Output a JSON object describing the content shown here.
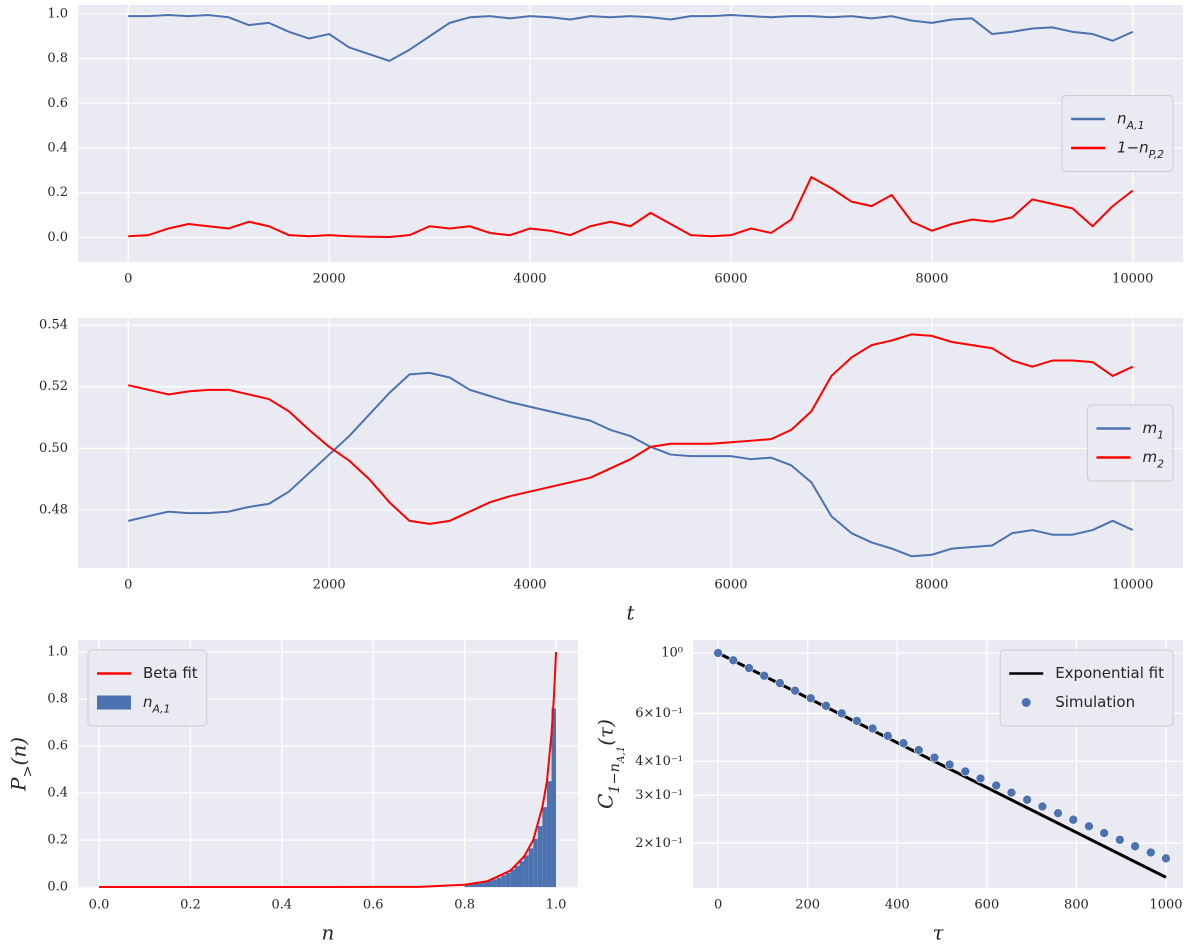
{
  "chart_data": [
    {
      "type": "line",
      "x": [
        0,
        200,
        400,
        600,
        800,
        1000,
        1200,
        1400,
        1600,
        1800,
        2000,
        2200,
        2400,
        2600,
        2800,
        3000,
        3200,
        3400,
        3600,
        3800,
        4000,
        4200,
        4400,
        4600,
        4800,
        5000,
        5200,
        5400,
        5600,
        5800,
        6000,
        6200,
        6400,
        6600,
        6800,
        7000,
        7200,
        7400,
        7600,
        7800,
        8000,
        8200,
        8400,
        8600,
        8800,
        9000,
        9200,
        9400,
        9600,
        9800,
        10000
      ],
      "series": [
        {
          "name": "n_{A,1}",
          "color": "#4c72b0",
          "values": [
            0.99,
            0.99,
            0.995,
            0.99,
            0.995,
            0.985,
            0.95,
            0.96,
            0.92,
            0.89,
            0.91,
            0.85,
            0.82,
            0.79,
            0.84,
            0.9,
            0.96,
            0.985,
            0.99,
            0.98,
            0.99,
            0.985,
            0.975,
            0.99,
            0.985,
            0.99,
            0.985,
            0.975,
            0.99,
            0.99,
            0.995,
            0.99,
            0.985,
            0.99,
            0.99,
            0.985,
            0.99,
            0.98,
            0.99,
            0.97,
            0.96,
            0.975,
            0.98,
            0.91,
            0.92,
            0.935,
            0.94,
            0.92,
            0.91,
            0.88,
            0.92
          ]
        },
        {
          "name": "1−n_{P,2}",
          "color": "#ff0000",
          "values": [
            0.005,
            0.01,
            0.04,
            0.06,
            0.05,
            0.04,
            0.07,
            0.05,
            0.01,
            0.005,
            0.01,
            0.005,
            0.003,
            0.002,
            0.01,
            0.05,
            0.04,
            0.05,
            0.02,
            0.01,
            0.04,
            0.03,
            0.01,
            0.05,
            0.07,
            0.05,
            0.11,
            0.06,
            0.01,
            0.005,
            0.01,
            0.04,
            0.02,
            0.08,
            0.27,
            0.22,
            0.16,
            0.14,
            0.19,
            0.07,
            0.03,
            0.06,
            0.08,
            0.07,
            0.09,
            0.17,
            0.15,
            0.13,
            0.05,
            0.14,
            0.21
          ]
        }
      ],
      "xlim": [
        -500,
        10500
      ],
      "xticks": [
        0,
        2000,
        4000,
        6000,
        8000,
        10000
      ],
      "ylim": [
        -0.11,
        1.04
      ],
      "yticks": [
        {
          "value": 0,
          "label": "0.0"
        },
        0.2,
        0.4,
        0.6,
        0.8,
        {
          "value": 1,
          "label": "1.0"
        }
      ],
      "grid": true,
      "legend": "center right"
    },
    {
      "type": "line",
      "x": [
        0,
        200,
        400,
        600,
        800,
        1000,
        1200,
        1400,
        1600,
        1800,
        2000,
        2200,
        2400,
        2600,
        2800,
        3000,
        3200,
        3400,
        3600,
        3800,
        4000,
        4200,
        4400,
        4600,
        4800,
        5000,
        5200,
        5400,
        5600,
        5800,
        6000,
        6200,
        6400,
        6600,
        6800,
        7000,
        7200,
        7400,
        7600,
        7800,
        8000,
        8200,
        8400,
        8600,
        8800,
        9000,
        9200,
        9400,
        9600,
        9800,
        10000
      ],
      "series": [
        {
          "name": "m_{1}",
          "color": "#4c72b0",
          "values": [
            0.4765,
            0.478,
            0.4795,
            0.479,
            0.479,
            0.4795,
            0.481,
            0.482,
            0.486,
            0.492,
            0.498,
            0.504,
            0.511,
            0.518,
            0.524,
            0.5245,
            0.523,
            0.519,
            0.517,
            0.515,
            0.5135,
            0.512,
            0.5105,
            0.509,
            0.506,
            0.504,
            0.5005,
            0.498,
            0.4975,
            0.4975,
            0.4975,
            0.4965,
            0.497,
            0.4945,
            0.489,
            0.478,
            0.4725,
            0.4695,
            0.4675,
            0.465,
            0.4655,
            0.4675,
            0.468,
            0.4685,
            0.4725,
            0.4735,
            0.472,
            0.472,
            0.4735,
            0.4765,
            0.4735
          ]
        },
        {
          "name": "m_{2}",
          "color": "#ff0000",
          "values": [
            0.5205,
            0.519,
            0.5175,
            0.5185,
            0.519,
            0.519,
            0.5175,
            0.516,
            0.512,
            0.506,
            0.5005,
            0.496,
            0.49,
            0.4825,
            0.4765,
            0.4755,
            0.4765,
            0.4795,
            0.4825,
            0.4845,
            0.486,
            0.4875,
            0.489,
            0.4905,
            0.4935,
            0.4965,
            0.5005,
            0.5015,
            0.5015,
            0.5015,
            0.502,
            0.5025,
            0.503,
            0.506,
            0.512,
            0.5235,
            0.5295,
            0.5335,
            0.535,
            0.537,
            0.5365,
            0.5345,
            0.5335,
            0.5325,
            0.5285,
            0.5265,
            0.5285,
            0.5285,
            0.528,
            0.5235,
            0.5265
          ]
        }
      ],
      "xlabel": "t",
      "xlim": [
        -500,
        10500
      ],
      "xticks": [
        0,
        2000,
        4000,
        6000,
        8000,
        10000
      ],
      "ylim": [
        0.4612,
        0.5423
      ],
      "yticks": [
        0.48,
        {
          "value": 0.5,
          "label": "0.50"
        },
        0.52,
        0.54
      ],
      "grid": true,
      "legend": "center right"
    },
    {
      "type": "histogram",
      "name": "n_{A,1}",
      "color": "#4c72b0",
      "bins": [
        0.8,
        0.81,
        0.82,
        0.83,
        0.84,
        0.85,
        0.86,
        0.87,
        0.88,
        0.89,
        0.9,
        0.91,
        0.92,
        0.93,
        0.94,
        0.95,
        0.96,
        0.97,
        0.98,
        0.99,
        1.0
      ],
      "counts": [
        0.01,
        0.012,
        0.015,
        0.018,
        0.022,
        0.027,
        0.033,
        0.04,
        0.05,
        0.06,
        0.075,
        0.09,
        0.11,
        0.135,
        0.165,
        0.205,
        0.26,
        0.34,
        0.45,
        0.76
      ],
      "series": [
        {
          "name": "Beta fit",
          "color": "#ff0000",
          "x": [
            0,
            0.5,
            0.7,
            0.8,
            0.85,
            0.9,
            0.93,
            0.95,
            0.97,
            0.98,
            0.99,
            0.995,
            1.0
          ],
          "values": [
            0,
            0,
            0.001,
            0.01,
            0.025,
            0.07,
            0.13,
            0.2,
            0.34,
            0.45,
            0.65,
            0.8,
            1.0
          ]
        }
      ],
      "xlabel": "n",
      "ylabel": "P_{>}(n)",
      "xlim": [
        -0.046,
        1.048
      ],
      "xticks": [
        {
          "value": 0,
          "label": "0.0"
        },
        0.2,
        0.4,
        0.6,
        0.8,
        {
          "value": 1,
          "label": "1.0"
        }
      ],
      "ylim": [
        -0.004,
        1.051
      ],
      "yticks": [
        {
          "value": 0,
          "label": "0.0"
        },
        0.2,
        0.4,
        0.6,
        0.8,
        {
          "value": 1,
          "label": "1.0"
        }
      ],
      "grid": true,
      "legend": "upper left"
    },
    {
      "type": "scatter",
      "log_y": true,
      "series": [
        {
          "name": "Exponential fit",
          "kind": "line",
          "color": "#000000",
          "x": [
            0,
            1000
          ],
          "values": [
            1,
            0.15
          ]
        },
        {
          "name": "Simulation",
          "kind": "scatter",
          "color": "#4c72b0",
          "x": [
            0,
            34,
            69,
            103,
            138,
            172,
            207,
            241,
            276,
            310,
            345,
            379,
            414,
            448,
            483,
            517,
            552,
            586,
            621,
            655,
            690,
            724,
            759,
            793,
            828,
            862,
            897,
            931,
            966,
            1000
          ],
          "values": [
            1,
            0.94,
            0.88,
            0.825,
            0.775,
            0.727,
            0.682,
            0.64,
            0.6,
            0.563,
            0.528,
            0.496,
            0.466,
            0.44,
            0.413,
            0.389,
            0.367,
            0.346,
            0.326,
            0.307,
            0.289,
            0.273,
            0.258,
            0.244,
            0.231,
            0.218,
            0.206,
            0.195,
            0.185,
            0.176
          ]
        }
      ],
      "xlabel": "τ",
      "ylabel": "C_{1−n_{A,1}}(τ)",
      "xlim": [
        -56,
        1038
      ],
      "xticks": [
        0,
        200,
        400,
        600,
        800,
        1000
      ],
      "ylim": [
        0.137,
        1.116
      ],
      "yticks": [
        {
          "value": 1,
          "label": "10⁰"
        },
        {
          "value": 0.6,
          "label": "6×10⁻¹"
        },
        {
          "value": 0.4,
          "label": "4×10⁻¹"
        },
        {
          "value": 0.3,
          "label": "3×10⁻¹"
        },
        {
          "value": 0.2,
          "label": "2×10⁻¹"
        }
      ],
      "grid": true,
      "legend": "upper right"
    }
  ]
}
